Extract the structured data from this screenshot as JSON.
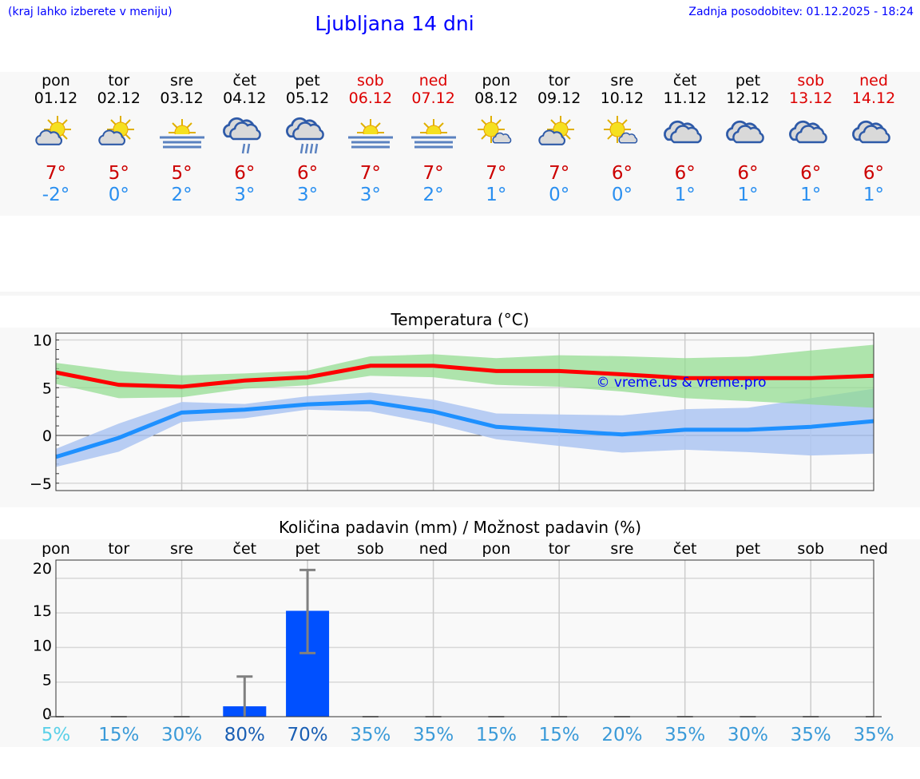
{
  "header": {
    "note": "(kraj lahko izberete v meniju)",
    "title": "Ljubljana 14 dni",
    "updated": "Zadnja posodobitev: 01.12.2025 - 18:24"
  },
  "days": [
    {
      "dow": "pon",
      "date": "01.12",
      "weekend": false,
      "icon": "partly-cloudy-icon",
      "max": "7°",
      "min": "-2°"
    },
    {
      "dow": "tor",
      "date": "02.12",
      "weekend": false,
      "icon": "partly-cloudy-icon",
      "max": "5°",
      "min": "0°"
    },
    {
      "dow": "sre",
      "date": "03.12",
      "weekend": false,
      "icon": "sun-fog-icon",
      "max": "5°",
      "min": "2°"
    },
    {
      "dow": "čet",
      "date": "04.12",
      "weekend": false,
      "icon": "cloud-light-rain-icon",
      "max": "6°",
      "min": "3°"
    },
    {
      "dow": "pet",
      "date": "05.12",
      "weekend": false,
      "icon": "cloud-rain-icon",
      "max": "6°",
      "min": "3°"
    },
    {
      "dow": "sob",
      "date": "06.12",
      "weekend": true,
      "icon": "sun-fog-icon",
      "max": "7°",
      "min": "3°"
    },
    {
      "dow": "ned",
      "date": "07.12",
      "weekend": true,
      "icon": "sun-fog-icon",
      "max": "7°",
      "min": "2°"
    },
    {
      "dow": "pon",
      "date": "08.12",
      "weekend": false,
      "icon": "sun-small-cloud-icon",
      "max": "7°",
      "min": "1°"
    },
    {
      "dow": "tor",
      "date": "09.12",
      "weekend": false,
      "icon": "partly-cloudy-icon",
      "max": "7°",
      "min": "0°"
    },
    {
      "dow": "sre",
      "date": "10.12",
      "weekend": false,
      "icon": "sun-small-cloud-icon",
      "max": "6°",
      "min": "0°"
    },
    {
      "dow": "čet",
      "date": "11.12",
      "weekend": false,
      "icon": "cloudy-icon",
      "max": "6°",
      "min": "1°"
    },
    {
      "dow": "pet",
      "date": "12.12",
      "weekend": false,
      "icon": "cloudy-icon",
      "max": "6°",
      "min": "1°"
    },
    {
      "dow": "sob",
      "date": "13.12",
      "weekend": true,
      "icon": "cloudy-icon",
      "max": "6°",
      "min": "1°"
    },
    {
      "dow": "ned",
      "date": "14.12",
      "weekend": true,
      "icon": "cloudy-icon",
      "max": "6°",
      "min": "1°"
    }
  ],
  "chart_data": [
    {
      "type": "line",
      "title": "Temperatura (°C)",
      "ylim": [
        -5.8,
        10.7
      ],
      "yticks": [
        "10",
        "5",
        "0",
        "−5"
      ],
      "ytick_values": [
        10,
        5,
        0,
        -5
      ],
      "grid": true,
      "watermark": "© vreme.us & vreme.pro",
      "max": [
        6.6,
        5.3,
        5.1,
        5.75,
        6.1,
        7.3,
        7.3,
        6.75,
        6.75,
        6.4,
        6.0,
        6.0,
        6.0,
        6.25
      ],
      "max_band_upper": [
        7.6,
        6.75,
        6.3,
        6.5,
        6.8,
        8.3,
        8.5,
        8.1,
        8.4,
        8.3,
        8.1,
        8.25,
        8.9,
        9.5
      ],
      "max_band_lower": [
        5.4,
        3.9,
        4.0,
        4.9,
        5.25,
        6.25,
        6.1,
        5.3,
        5.1,
        4.6,
        3.9,
        3.6,
        3.25,
        2.9
      ],
      "min": [
        -2.25,
        -0.25,
        2.4,
        2.7,
        3.25,
        3.5,
        2.5,
        0.9,
        0.5,
        0.1,
        0.6,
        0.6,
        0.9,
        1.5
      ],
      "min_band_upper": [
        -1.4,
        1.25,
        3.5,
        3.3,
        4.1,
        4.5,
        3.75,
        2.3,
        2.2,
        2.1,
        2.75,
        2.9,
        3.9,
        4.9
      ],
      "min_band_lower": [
        -3.3,
        -1.7,
        1.4,
        1.8,
        2.7,
        2.5,
        1.25,
        -0.4,
        -1.1,
        -1.8,
        -1.5,
        -1.75,
        -2.1,
        -1.9
      ],
      "colors": {
        "max": "#ff0000",
        "max_band": "#aee8ac",
        "min": "#1e90ff",
        "min_band": "#adc6f2"
      }
    },
    {
      "type": "bar",
      "title": "Količina padavin (mm) / Možnost padavin (%)",
      "categories": [
        "pon",
        "tor",
        "sre",
        "čet",
        "pet",
        "sob",
        "ned",
        "pon",
        "tor",
        "sre",
        "čet",
        "pet",
        "sob",
        "ned"
      ],
      "ylim": [
        0,
        21.5
      ],
      "yticks": [
        "20",
        "15",
        "10",
        "5",
        "0"
      ],
      "ytick_values": [
        20,
        15,
        10,
        5,
        0
      ],
      "values": [
        0,
        0,
        0,
        1.5,
        15.3,
        0,
        0,
        0,
        0,
        0,
        0,
        0,
        0,
        0
      ],
      "error_low": [
        0,
        0,
        0,
        0,
        9.2,
        0,
        0,
        0,
        0,
        0,
        0,
        0,
        0,
        0
      ],
      "error_high": [
        0,
        0,
        0,
        5.8,
        21.2,
        0,
        0,
        0,
        0,
        0,
        0,
        0,
        0,
        0
      ],
      "probability": [
        "5%",
        "15%",
        "30%",
        "80%",
        "70%",
        "35%",
        "35%",
        "15%",
        "15%",
        "20%",
        "35%",
        "30%",
        "35%",
        "35%"
      ],
      "colors": {
        "bar": "#0050ff",
        "error": "#808080"
      }
    }
  ]
}
